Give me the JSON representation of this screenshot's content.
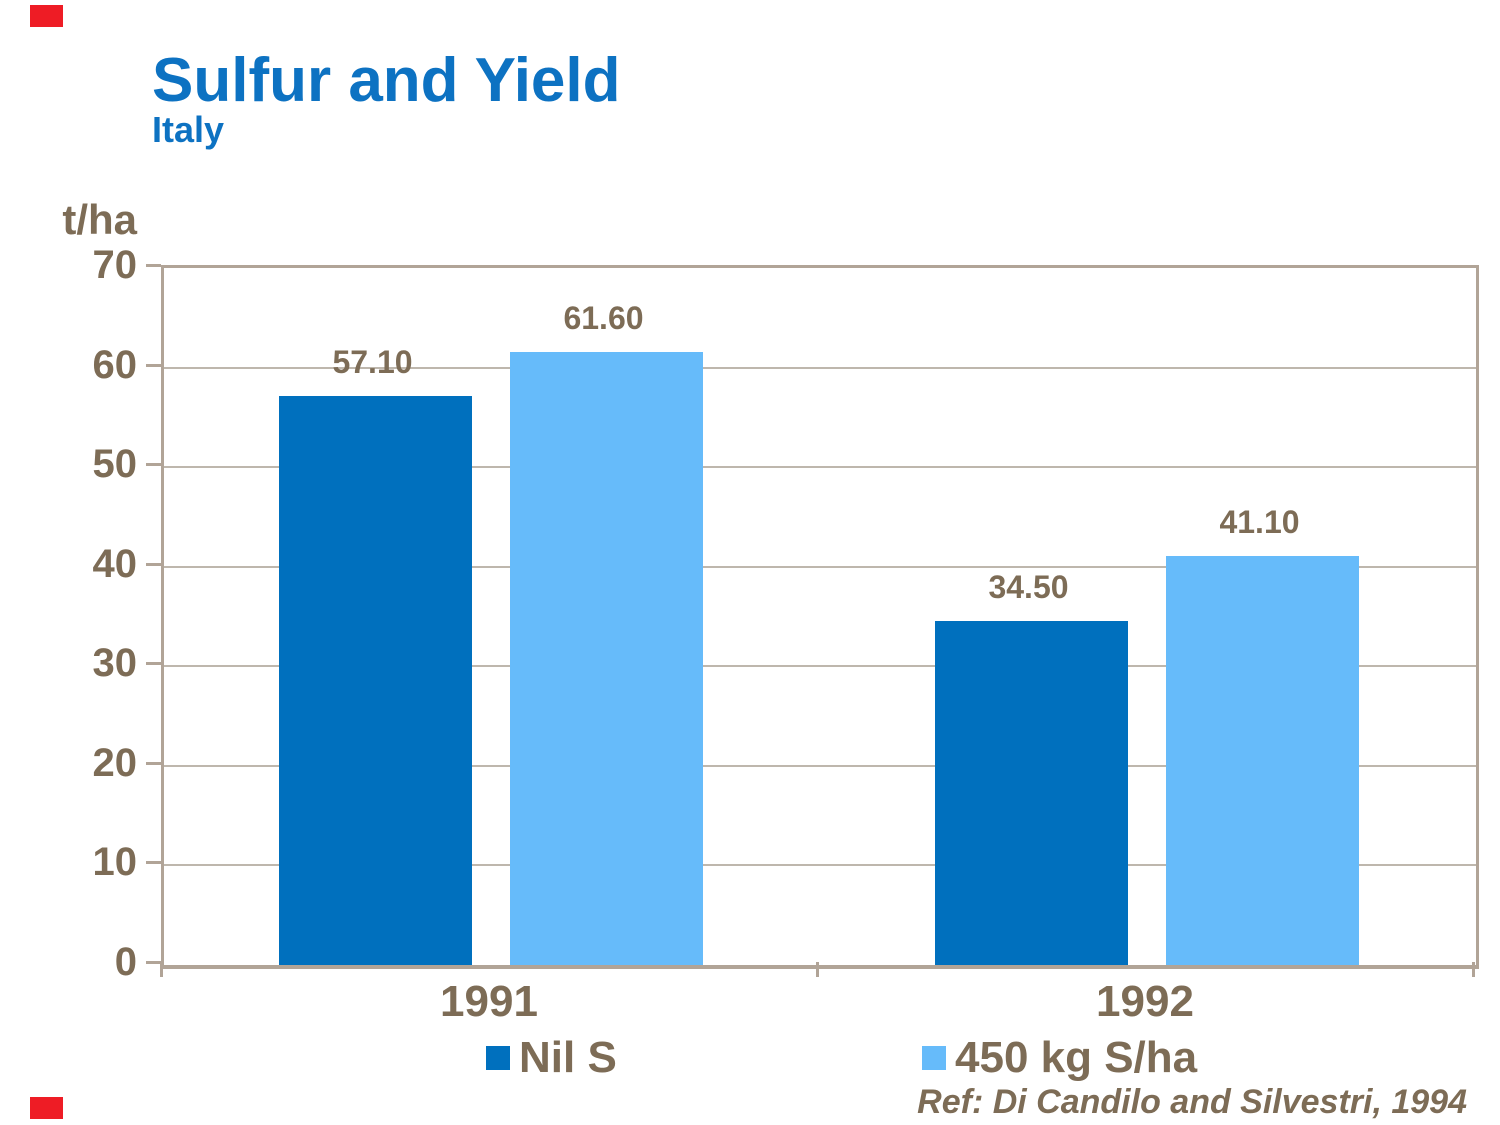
{
  "slide": {
    "title": "Sulfur and Yield",
    "subtitle": "Italy",
    "reference": "Ref: Di Candilo and Silvestri, 1994",
    "colors": {
      "accent_red": "#ee1c25",
      "title_blue": "#0d72c2",
      "text_brown": "#7d6c56",
      "frame_tan": "#b1a497",
      "grid_gray": "#beb7ad"
    }
  },
  "chart_data": {
    "type": "bar",
    "title": "Sulfur and Yield",
    "subtitle": "Italy",
    "unit_label": "t/ha",
    "xlabel": "",
    "ylabel": "t/ha",
    "ylim": [
      0,
      70
    ],
    "yticks": [
      0,
      10,
      20,
      30,
      40,
      50,
      60,
      70
    ],
    "grid": true,
    "legend_position": "bottom",
    "categories": [
      "1991",
      "1992"
    ],
    "series": [
      {
        "name": "Nil S",
        "color": "#0070be",
        "values": [
          57.1,
          34.5
        ],
        "labels": [
          "57.10",
          "34.50"
        ]
      },
      {
        "name": "450 kg S/ha",
        "color": "#66bbfa",
        "values": [
          61.6,
          41.1
        ],
        "labels": [
          "61.60",
          "41.10"
        ]
      }
    ]
  }
}
